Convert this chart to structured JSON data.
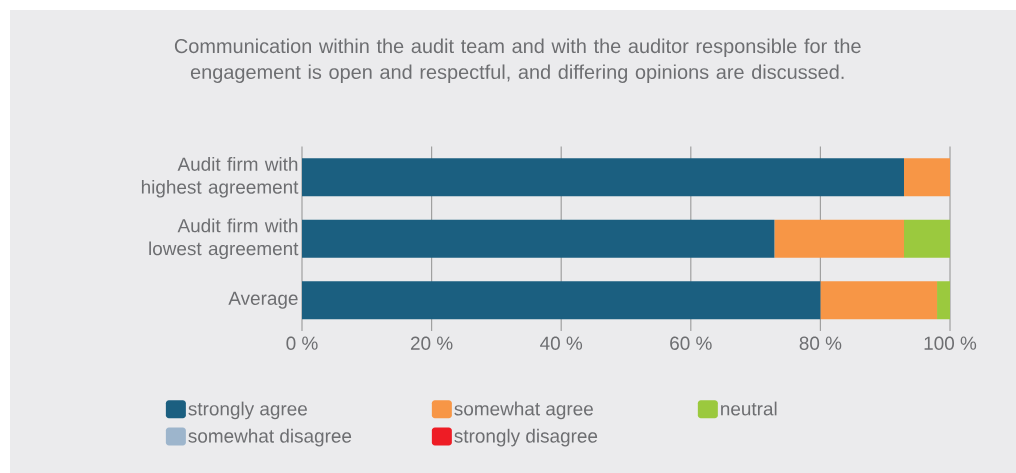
{
  "chart_data": {
    "type": "bar",
    "orientation": "horizontal",
    "stacked": true,
    "title": "Communication within the audit team and with the auditor responsible for the engagement is open and respectful, and differing opinions are discussed.",
    "categories": [
      "Audit firm with highest agreement",
      "Audit firm with lowest agreement",
      "Average"
    ],
    "series": [
      {
        "name": "strongly agree",
        "color": "#1b5f80",
        "values": [
          92.9,
          72.9,
          80
        ]
      },
      {
        "name": "somewhat agree",
        "color": "#f79646",
        "values": [
          7.1,
          20,
          18
        ]
      },
      {
        "name": "neutral",
        "color": "#9bc93e",
        "values": [
          0,
          7.1,
          2
        ]
      },
      {
        "name": "somewhat disagree",
        "color": "#9db5cc",
        "values": [
          0,
          0,
          0
        ]
      },
      {
        "name": "strongly disagree",
        "color": "#ee1c25",
        "values": [
          0,
          0,
          0
        ]
      }
    ],
    "xlim": [
      0,
      100
    ],
    "xticks": [
      {
        "value": 0,
        "label": "0 %"
      },
      {
        "value": 20,
        "label": "20 %"
      },
      {
        "value": 40,
        "label": "40 %"
      },
      {
        "value": 60,
        "label": "60 %"
      },
      {
        "value": 80,
        "label": "80 %"
      },
      {
        "value": 100,
        "label": "100 %"
      }
    ],
    "grid": "x",
    "legend": "bottom"
  }
}
